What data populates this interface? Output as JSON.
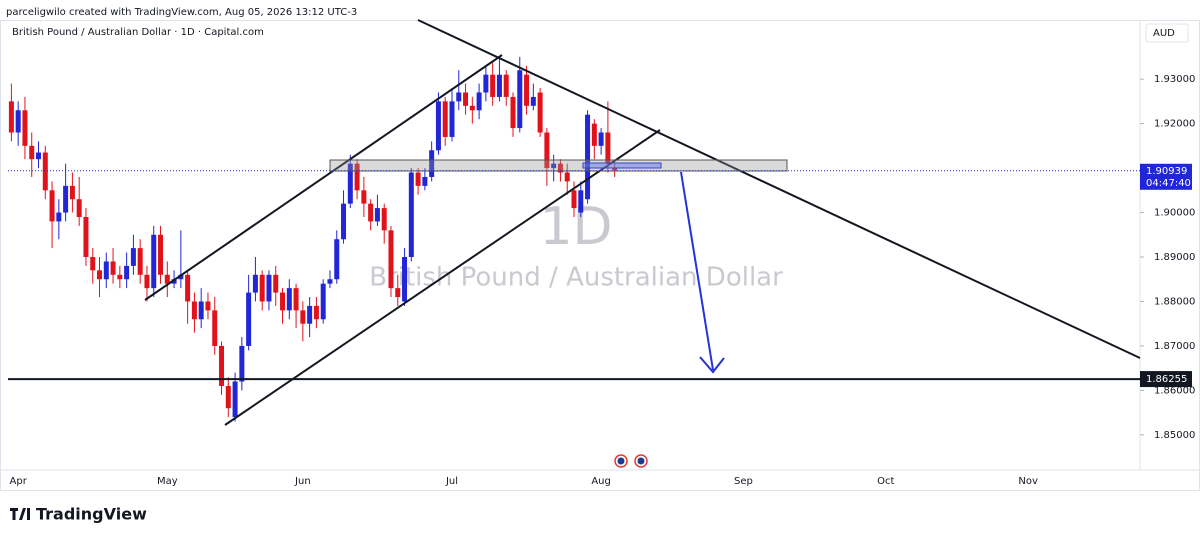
{
  "chart_data": {
    "type": "candlestick",
    "attribution": "parceligwilo created with TradingView.com, Aug 05, 2026 13:12 UTC-3",
    "title": "British Pound / Australian Dollar · 1D · Capital.com",
    "currency_label": "AUD",
    "watermark": {
      "interval": "1D",
      "symbol": "British Pound / Australian Dollar"
    },
    "brand": "TradingView",
    "up_color": "#2126d6",
    "down_color": "#e0131c",
    "ylim": [
      1.8421,
      1.9433
    ],
    "yticks": [
      {
        "value": 1.93,
        "label": "1.93000"
      },
      {
        "value": 1.92,
        "label": "1.92000"
      },
      {
        "value": 1.9,
        "label": "1.90000"
      },
      {
        "value": 1.89,
        "label": "1.89000"
      },
      {
        "value": 1.88,
        "label": "1.88000"
      },
      {
        "value": 1.87,
        "label": "1.87000"
      },
      {
        "value": 1.86,
        "label": "1.86000"
      },
      {
        "value": 1.85,
        "label": "1.85000"
      }
    ],
    "last_price": {
      "value": 1.90939,
      "countdown": "04:47:40"
    },
    "levels": [
      1.86255
    ],
    "categories": [
      null,
      "Apr",
      null,
      null,
      null,
      null,
      null,
      null,
      null,
      null,
      null,
      null,
      null,
      null,
      null,
      null,
      null,
      null,
      null,
      null,
      null,
      null,
      null,
      "May",
      null,
      null,
      null,
      null,
      null,
      null,
      null,
      null,
      null,
      null,
      null,
      null,
      null,
      null,
      null,
      null,
      null,
      null,
      null,
      "Jun",
      null,
      null,
      null,
      null,
      null,
      null,
      null,
      null,
      null,
      null,
      null,
      null,
      null,
      null,
      null,
      null,
      null,
      null,
      null,
      null,
      null,
      "Jul",
      null,
      null,
      null,
      null,
      null,
      null,
      null,
      null,
      null,
      null,
      null,
      null,
      null,
      null,
      null,
      null,
      null,
      null,
      null,
      null,
      null,
      "Aug",
      null,
      null,
      null,
      null,
      null,
      null,
      null,
      null,
      null,
      null,
      null,
      null,
      null,
      null,
      null,
      null,
      null,
      null,
      null,
      null,
      "Sep",
      null,
      null,
      null,
      null,
      null,
      null,
      null,
      null,
      null,
      null,
      null,
      null,
      null,
      null,
      null,
      null,
      null,
      null,
      null,
      null,
      "Oct",
      null,
      null,
      null,
      null,
      null,
      null,
      null,
      null,
      null,
      null,
      null,
      null,
      null,
      null,
      null,
      null,
      null,
      null,
      null,
      null,
      "Nov",
      null,
      null,
      null,
      null,
      null,
      null,
      null,
      null,
      null,
      null,
      null,
      null,
      null,
      null,
      null,
      null
    ],
    "ohlc": [
      [
        1.925,
        1.929,
        1.916,
        1.918
      ],
      [
        1.918,
        1.925,
        1.915,
        1.923
      ],
      [
        1.923,
        1.926,
        1.912,
        1.915
      ],
      [
        1.915,
        1.918,
        1.908,
        1.912
      ],
      [
        1.912,
        1.916,
        1.91,
        1.9135
      ],
      [
        1.9135,
        1.915,
        1.903,
        1.905
      ],
      [
        1.905,
        1.907,
        1.892,
        1.898
      ],
      [
        1.898,
        1.903,
        1.894,
        1.9
      ],
      [
        1.9,
        1.911,
        1.898,
        1.906
      ],
      [
        1.906,
        1.909,
        1.9,
        1.903
      ],
      [
        1.903,
        1.908,
        1.897,
        1.899
      ],
      [
        1.899,
        1.901,
        1.888,
        1.89
      ],
      [
        1.89,
        1.892,
        1.884,
        1.887
      ],
      [
        1.887,
        1.89,
        1.881,
        1.885
      ],
      [
        1.885,
        1.891,
        1.883,
        1.889
      ],
      [
        1.889,
        1.892,
        1.884,
        1.886
      ],
      [
        1.886,
        1.888,
        1.883,
        1.885
      ],
      [
        1.885,
        1.891,
        1.883,
        1.888
      ],
      [
        1.888,
        1.895,
        1.886,
        1.892
      ],
      [
        1.892,
        1.894,
        1.884,
        1.886
      ],
      [
        1.886,
        1.888,
        1.88,
        1.883
      ],
      [
        1.883,
        1.897,
        1.881,
        1.895
      ],
      [
        1.895,
        1.897,
        1.884,
        1.886
      ],
      [
        1.886,
        1.889,
        1.881,
        1.884
      ],
      [
        1.884,
        1.887,
        1.883,
        1.885
      ],
      [
        1.885,
        1.896,
        1.883,
        1.886
      ],
      [
        1.886,
        1.887,
        1.875,
        1.88
      ],
      [
        1.88,
        1.882,
        1.873,
        1.876
      ],
      [
        1.876,
        1.883,
        1.874,
        1.88
      ],
      [
        1.88,
        1.882,
        1.876,
        1.878
      ],
      [
        1.878,
        1.881,
        1.868,
        1.87
      ],
      [
        1.87,
        1.871,
        1.859,
        1.861
      ],
      [
        1.861,
        1.863,
        1.854,
        1.856
      ],
      [
        1.854,
        1.864,
        1.853,
        1.862
      ],
      [
        1.862,
        1.872,
        1.86,
        1.87
      ],
      [
        1.87,
        1.886,
        1.869,
        1.882
      ],
      [
        1.882,
        1.89,
        1.88,
        1.886
      ],
      [
        1.886,
        1.887,
        1.878,
        1.88
      ],
      [
        1.88,
        1.887,
        1.878,
        1.886
      ],
      [
        1.886,
        1.888,
        1.879,
        1.882
      ],
      [
        1.882,
        1.883,
        1.875,
        1.878
      ],
      [
        1.878,
        1.885,
        1.876,
        1.883
      ],
      [
        1.883,
        1.884,
        1.874,
        1.878
      ],
      [
        1.878,
        1.88,
        1.871,
        1.875
      ],
      [
        1.875,
        1.881,
        1.872,
        1.879
      ],
      [
        1.879,
        1.881,
        1.874,
        1.876
      ],
      [
        1.876,
        1.885,
        1.875,
        1.884
      ],
      [
        1.884,
        1.887,
        1.883,
        1.885
      ],
      [
        1.885,
        1.896,
        1.884,
        1.894
      ],
      [
        1.894,
        1.905,
        1.893,
        1.902
      ],
      [
        1.902,
        1.913,
        1.901,
        1.911
      ],
      [
        1.911,
        1.912,
        1.903,
        1.905
      ],
      [
        1.905,
        1.908,
        1.899,
        1.902
      ],
      [
        1.902,
        1.903,
        1.896,
        1.898
      ],
      [
        1.898,
        1.904,
        1.897,
        1.901
      ],
      [
        1.901,
        1.902,
        1.893,
        1.896
      ],
      [
        1.896,
        1.897,
        1.881,
        1.883
      ],
      [
        1.883,
        1.886,
        1.879,
        1.881
      ],
      [
        1.88,
        1.892,
        1.879,
        1.89
      ],
      [
        1.89,
        1.91,
        1.889,
        1.909
      ],
      [
        1.909,
        1.91,
        1.904,
        1.906
      ],
      [
        1.906,
        1.91,
        1.905,
        1.908
      ],
      [
        1.908,
        1.916,
        1.907,
        1.914
      ],
      [
        1.914,
        1.927,
        1.913,
        1.925
      ],
      [
        1.925,
        1.926,
        1.915,
        1.917
      ],
      [
        1.917,
        1.928,
        1.916,
        1.925
      ],
      [
        1.925,
        1.932,
        1.923,
        1.927
      ],
      [
        1.927,
        1.929,
        1.922,
        1.924
      ],
      [
        1.924,
        1.926,
        1.92,
        1.923
      ],
      [
        1.923,
        1.929,
        1.921,
        1.927
      ],
      [
        1.927,
        1.933,
        1.925,
        1.931
      ],
      [
        1.931,
        1.934,
        1.924,
        1.926
      ],
      [
        1.926,
        1.935,
        1.925,
        1.931
      ],
      [
        1.931,
        1.932,
        1.924,
        1.926
      ],
      [
        1.926,
        1.927,
        1.917,
        1.919
      ],
      [
        1.919,
        1.935,
        1.918,
        1.932
      ],
      [
        1.931,
        1.933,
        1.922,
        1.924
      ],
      [
        1.924,
        1.929,
        1.923,
        1.926
      ],
      [
        1.927,
        1.928,
        1.917,
        1.918
      ],
      [
        1.918,
        1.919,
        1.906,
        1.91
      ],
      [
        1.91,
        1.913,
        1.907,
        1.911
      ],
      [
        1.911,
        1.912,
        1.907,
        1.909
      ],
      [
        1.909,
        1.911,
        1.904,
        1.907
      ],
      [
        1.905,
        1.907,
        1.899,
        1.901
      ],
      [
        1.9,
        1.907,
        1.899,
        1.905
      ],
      [
        1.903,
        1.923,
        1.902,
        1.922
      ],
      [
        1.92,
        1.921,
        1.912,
        1.915
      ],
      [
        1.915,
        1.919,
        1.913,
        1.918
      ],
      [
        1.918,
        1.925,
        1.909,
        1.911
      ],
      [
        1.91,
        1.911,
        1.908,
        1.9095
      ]
    ]
  }
}
